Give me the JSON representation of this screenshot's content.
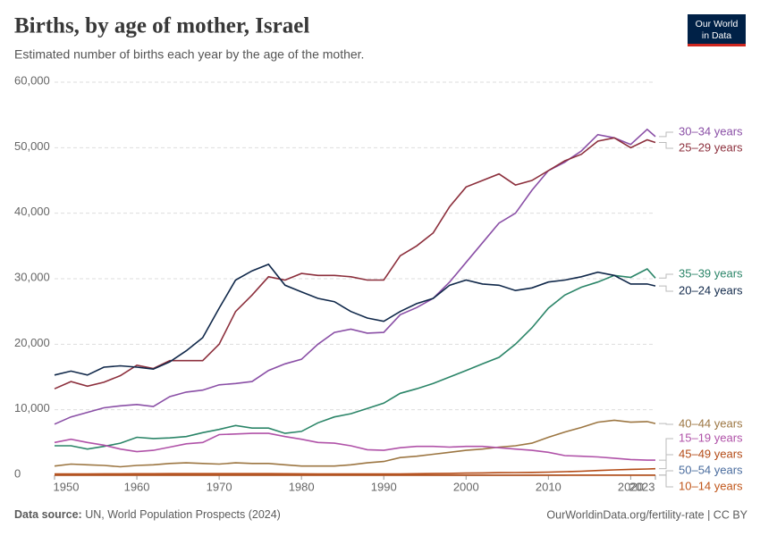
{
  "chart_data": {
    "type": "line",
    "title": "Births, by age of mother, Israel",
    "subtitle": "Estimated number of births each year by the age of the mother.",
    "logo": [
      "Our World",
      "in Data"
    ],
    "source_label": "Data source:",
    "source": "UN, World Population Prospects (2024)",
    "credit": "OurWorldinData.org/fertility-rate | CC BY",
    "x": [
      1950,
      1952,
      1954,
      1956,
      1958,
      1960,
      1962,
      1964,
      1966,
      1968,
      1970,
      1972,
      1974,
      1976,
      1978,
      1980,
      1982,
      1984,
      1986,
      1988,
      1990,
      1992,
      1994,
      1996,
      1998,
      2000,
      2002,
      2004,
      2006,
      2008,
      2010,
      2012,
      2014,
      2016,
      2018,
      2020,
      2022,
      2023
    ],
    "xlim": [
      1950,
      2023
    ],
    "xticks": [
      1950,
      1960,
      1970,
      1980,
      1990,
      2000,
      2010,
      2020,
      2023
    ],
    "ylim": [
      0,
      60000
    ],
    "yticks": [
      0,
      {
        "value": 10000,
        "label": "10,000"
      },
      {
        "value": 20000,
        "label": "20,000"
      },
      {
        "value": 30000,
        "label": "30,000"
      },
      {
        "value": 40000,
        "label": "40,000"
      },
      {
        "value": 50000,
        "label": "50,000"
      },
      {
        "value": 60000,
        "label": "60,000"
      }
    ],
    "grid": true,
    "series": [
      {
        "name": "30–34 years",
        "color": "#8a4fa6",
        "values": [
          7800,
          8900,
          9600,
          10300,
          10600,
          10800,
          10500,
          12000,
          12700,
          13000,
          13800,
          14000,
          14300,
          16000,
          17000,
          17700,
          20000,
          21800,
          22300,
          21700,
          21800,
          24500,
          25600,
          27000,
          29500,
          32500,
          35500,
          38500,
          40000,
          43500,
          46500,
          47800,
          49500,
          52000,
          51500,
          50500,
          52800,
          51700
        ]
      },
      {
        "name": "25–29 years",
        "color": "#8c2f3c",
        "values": [
          13200,
          14300,
          13600,
          14200,
          15200,
          16800,
          16300,
          17500,
          17500,
          17500,
          20000,
          25000,
          27500,
          30300,
          29800,
          30800,
          30500,
          30500,
          30300,
          29800,
          29800,
          33500,
          35000,
          37000,
          41000,
          44000,
          45000,
          46000,
          44300,
          45000,
          46500,
          48000,
          49000,
          51000,
          51500,
          50000,
          51200,
          50800
        ]
      },
      {
        "name": "35–39 years",
        "color": "#2b8568",
        "values": [
          4500,
          4500,
          4000,
          4400,
          4900,
          5800,
          5600,
          5700,
          5900,
          6500,
          7000,
          7600,
          7200,
          7200,
          6400,
          6700,
          8000,
          8900,
          9400,
          10200,
          11000,
          12500,
          13200,
          14000,
          15000,
          16000,
          17000,
          18000,
          20000,
          22500,
          25500,
          27500,
          28700,
          29500,
          30500,
          30200,
          31500,
          30100
        ]
      },
      {
        "name": "20–24 years",
        "color": "#10284a",
        "values": [
          15300,
          15900,
          15300,
          16500,
          16700,
          16500,
          16200,
          17300,
          19000,
          21000,
          25500,
          29800,
          31200,
          32200,
          29000,
          28000,
          27000,
          26500,
          25000,
          24000,
          23500,
          25000,
          26200,
          27000,
          29000,
          29800,
          29200,
          29000,
          28200,
          28600,
          29500,
          29800,
          30300,
          31000,
          30500,
          29200,
          29200,
          28900
        ]
      },
      {
        "name": "40–44 years",
        "color": "#9c7642",
        "values": [
          1400,
          1700,
          1600,
          1500,
          1300,
          1500,
          1600,
          1800,
          1900,
          1800,
          1700,
          1900,
          1800,
          1800,
          1600,
          1400,
          1400,
          1400,
          1600,
          1900,
          2100,
          2700,
          2900,
          3200,
          3500,
          3800,
          4000,
          4300,
          4500,
          4900,
          5800,
          6600,
          7300,
          8100,
          8400,
          8100,
          8200,
          7900
        ]
      },
      {
        "name": "15–19 years",
        "color": "#b052a8",
        "values": [
          5000,
          5500,
          5000,
          4600,
          4000,
          3600,
          3800,
          4300,
          4800,
          5000,
          6200,
          6300,
          6400,
          6400,
          5900,
          5500,
          5000,
          4900,
          4500,
          3900,
          3800,
          4200,
          4400,
          4400,
          4300,
          4400,
          4400,
          4200,
          4000,
          3800,
          3500,
          3000,
          2900,
          2800,
          2600,
          2400,
          2300,
          2300
        ]
      },
      {
        "name": "45–49 years",
        "color": "#b34a15",
        "values": [
          200,
          210,
          210,
          220,
          220,
          230,
          230,
          240,
          240,
          240,
          240,
          240,
          240,
          240,
          230,
          220,
          210,
          200,
          190,
          190,
          190,
          210,
          230,
          260,
          290,
          330,
          360,
          390,
          410,
          440,
          480,
          540,
          620,
          720,
          820,
          900,
          960,
          1000
        ]
      },
      {
        "name": "50–54 years",
        "color": "#4a6c9e",
        "values": [
          20,
          20,
          20,
          20,
          20,
          20,
          20,
          20,
          20,
          20,
          20,
          20,
          20,
          20,
          20,
          20,
          20,
          20,
          20,
          20,
          20,
          20,
          20,
          20,
          20,
          20,
          20,
          20,
          20,
          20,
          20,
          20,
          30,
          30,
          30,
          30,
          30,
          30
        ]
      },
      {
        "name": "10–14 years",
        "color": "#c0561a",
        "values": [
          10,
          10,
          10,
          10,
          10,
          10,
          10,
          10,
          10,
          10,
          10,
          10,
          10,
          10,
          10,
          10,
          10,
          10,
          10,
          10,
          10,
          10,
          10,
          10,
          10,
          10,
          10,
          10,
          10,
          10,
          10,
          10,
          10,
          10,
          10,
          10,
          10,
          10
        ]
      }
    ]
  }
}
